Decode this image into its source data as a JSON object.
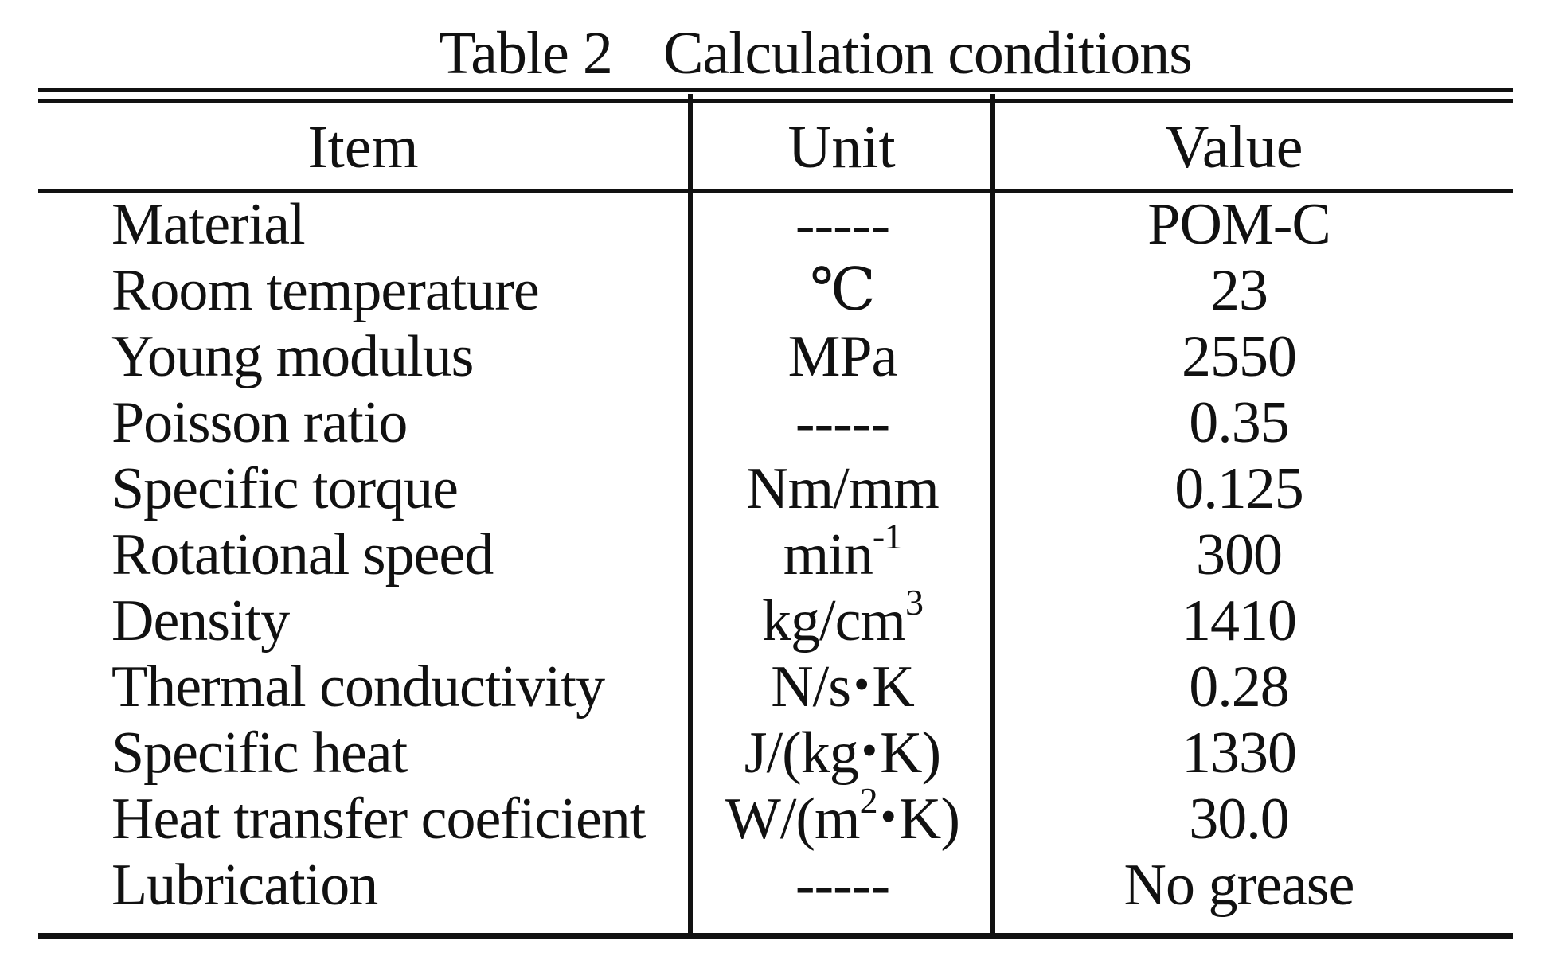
{
  "table": {
    "caption": {
      "label": "Table",
      "number": "2",
      "title_word1": "Calculation",
      "title_word2": "conditions"
    },
    "headers": {
      "item": "Item",
      "unit": "Unit",
      "value": "Value"
    },
    "rows": [
      {
        "item": "Material",
        "unit": "-----",
        "value": "POM-C"
      },
      {
        "item": "Room temperature",
        "unit": "℃",
        "value": "23"
      },
      {
        "item": "Young modulus",
        "unit": "MPa",
        "value": "2550"
      },
      {
        "item": "Poisson ratio",
        "unit": "-----",
        "value": "0.35"
      },
      {
        "item": "Specific torque",
        "unit": "Nm/mm",
        "value": "0.125"
      },
      {
        "item": "Rotational speed",
        "unit_base": "min",
        "unit_sup": "-1",
        "value": "300"
      },
      {
        "item": "Density",
        "unit_base": "kg/cm",
        "unit_sup": "3",
        "value": "1410"
      },
      {
        "item": "Thermal conductivity",
        "unit_a": "N/s",
        "unit_dot": "•",
        "unit_b": "K",
        "value": "0.28"
      },
      {
        "item": "Specific heat",
        "unit_a": "J/(kg",
        "unit_dot": "•",
        "unit_b": "K)",
        "value": "1330"
      },
      {
        "item": "Heat transfer coeficient",
        "unit_a": "W/(m",
        "unit_sup": "2",
        "unit_dot": "•",
        "unit_b": "K)",
        "value": "30.0"
      },
      {
        "item": "Lubrication",
        "unit": "-----",
        "value": "No grease"
      }
    ]
  }
}
